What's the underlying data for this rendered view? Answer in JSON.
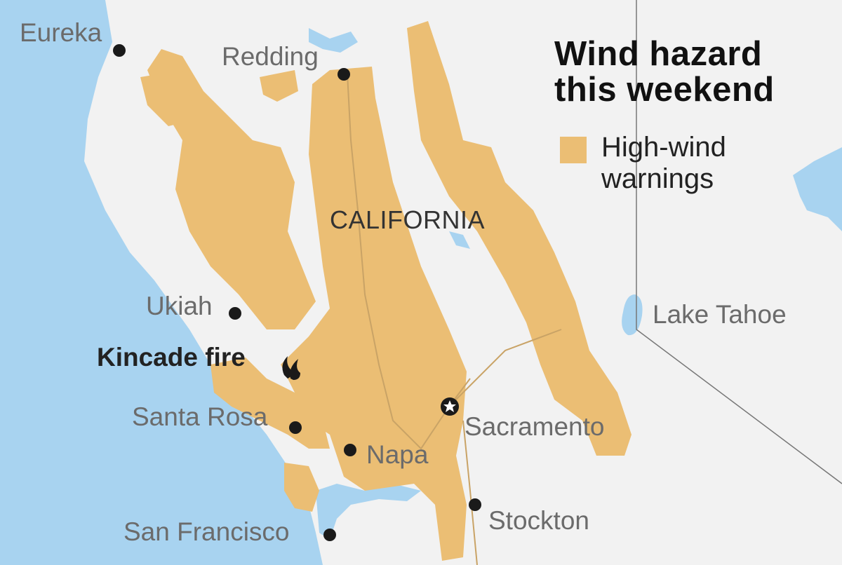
{
  "title": [
    "Wind hazard",
    "this weekend"
  ],
  "legend": {
    "label_line1": "High-wind",
    "label_line2": "warnings",
    "color": "#ebbe74"
  },
  "state_label": "CALIFORNIA",
  "fire_label": "Kincade fire",
  "colors": {
    "ocean": "#a8d3f0",
    "land": "#f2f2f2",
    "hazard": "#ebbe74",
    "marker": "#1a1a1a"
  },
  "cities": {
    "eureka": "Eureka",
    "redding": "Redding",
    "ukiah": "Ukiah",
    "santa_rosa": "Santa Rosa",
    "napa": "Napa",
    "sacramento": "Sacramento",
    "stockton": "Stockton",
    "san_francisco": "San Francisco",
    "lake_tahoe": "Lake Tahoe"
  }
}
